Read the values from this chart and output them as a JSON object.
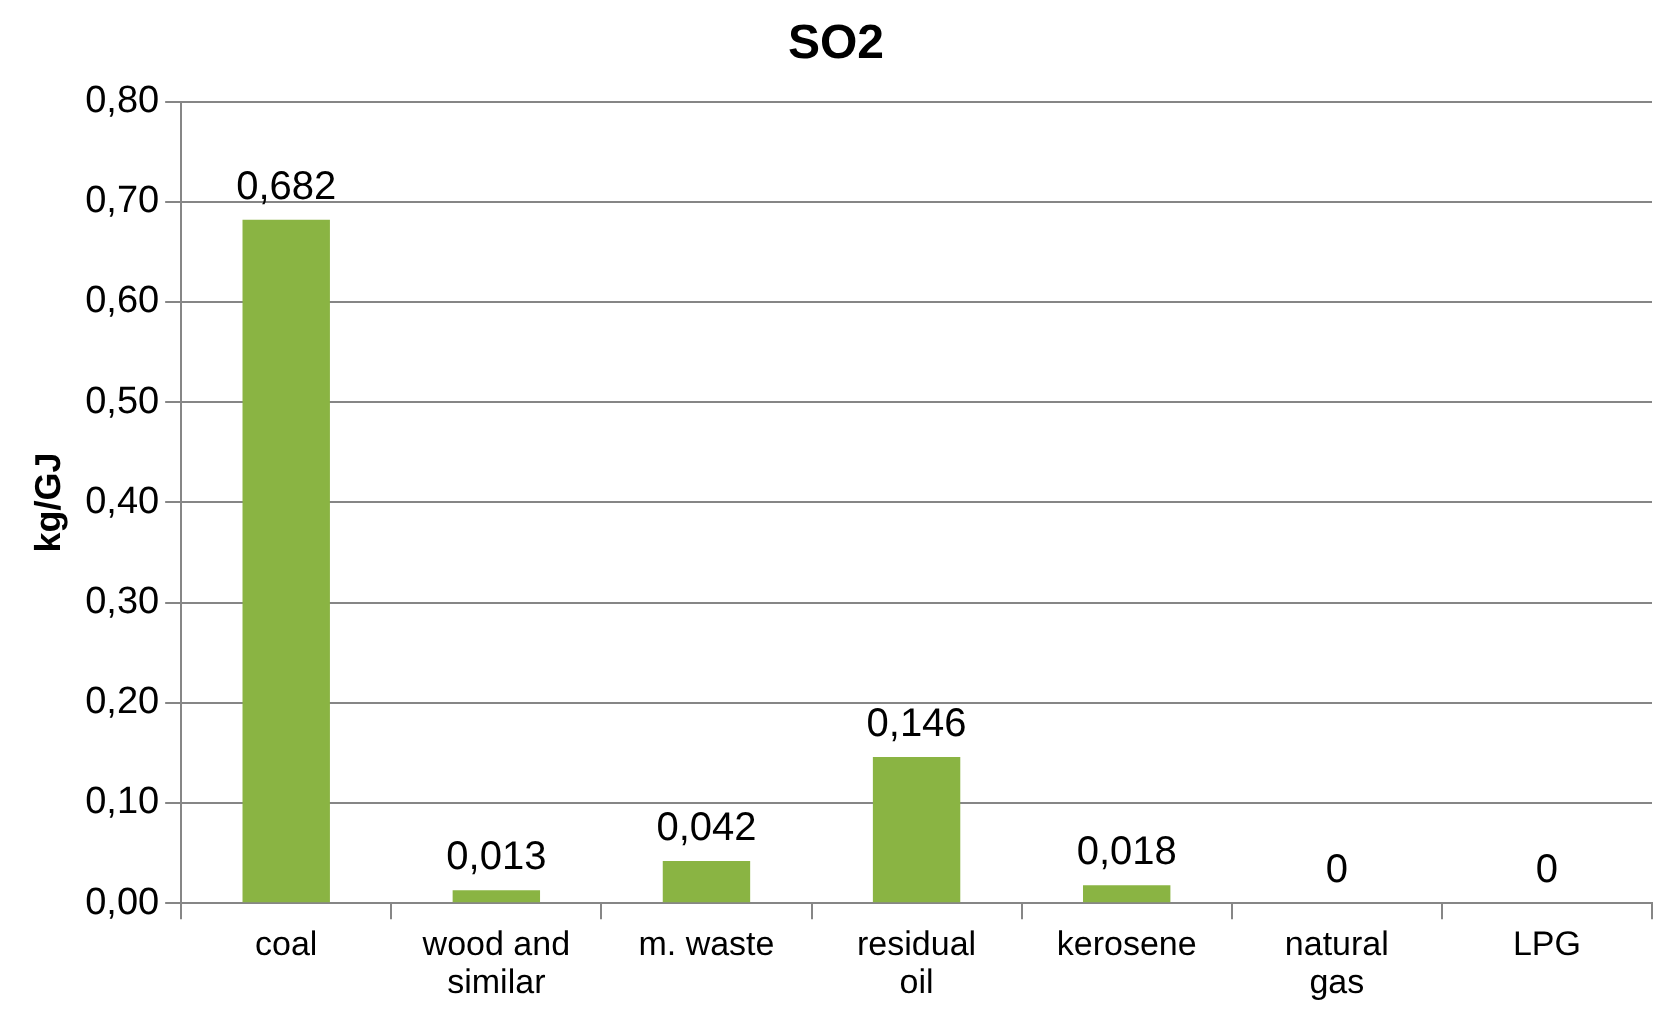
{
  "chart_data": {
    "type": "bar",
    "title": "SO2",
    "ylabel": "kg/GJ",
    "categories": [
      "coal",
      "wood and similar",
      "m. waste",
      "residual oil",
      "kerosene",
      "natural gas",
      "LPG"
    ],
    "values": [
      0.682,
      0.013,
      0.042,
      0.146,
      0.018,
      0,
      0
    ],
    "value_labels": [
      "0,682",
      "0,013",
      "0,042",
      "0,146",
      "0,018",
      "0",
      "0"
    ],
    "color": "#8ab443",
    "ylim": [
      0,
      0.8
    ],
    "yticks": [
      {
        "value": 0,
        "label": "0,00"
      },
      {
        "value": 0.1,
        "label": "0,10"
      },
      {
        "value": 0.2,
        "label": "0,20"
      },
      {
        "value": 0.3,
        "label": "0,30"
      },
      {
        "value": 0.4,
        "label": "0,40"
      },
      {
        "value": 0.5,
        "label": "0,50"
      },
      {
        "value": 0.6,
        "label": "0,60"
      },
      {
        "value": 0.7,
        "label": "0,70"
      },
      {
        "value": 0.8,
        "label": "0,80"
      }
    ],
    "grid": "y",
    "legend": false
  }
}
